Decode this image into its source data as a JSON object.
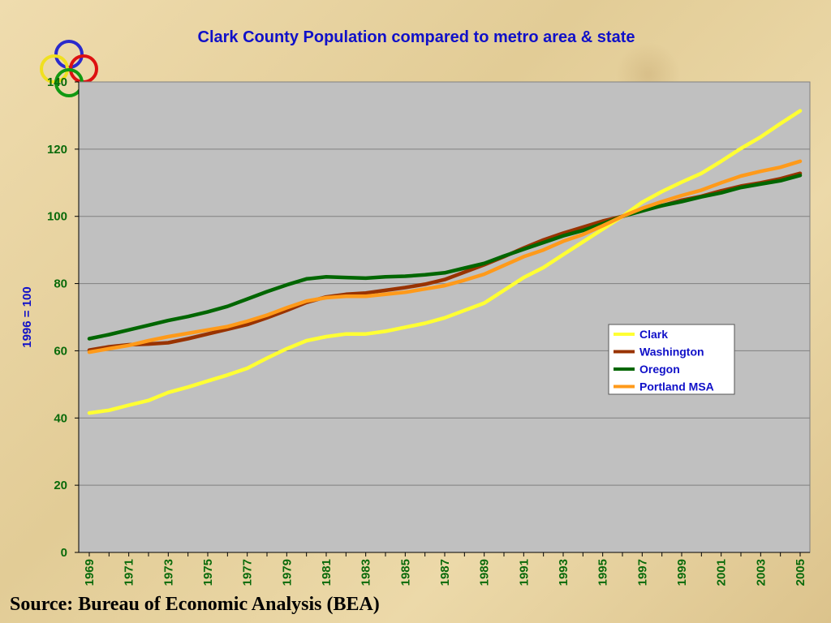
{
  "chart_data": {
    "type": "line",
    "title": "Clark County Population compared to metro area & state",
    "ylabel": "1996 = 100",
    "ylim": [
      0,
      140
    ],
    "yticks": [
      "0",
      "20",
      "40",
      "60",
      "80",
      "100",
      "120",
      "140"
    ],
    "x": [
      1969,
      1970,
      1971,
      1972,
      1973,
      1974,
      1975,
      1976,
      1977,
      1978,
      1979,
      1980,
      1981,
      1982,
      1983,
      1984,
      1985,
      1986,
      1987,
      1988,
      1989,
      1990,
      1991,
      1992,
      1993,
      1994,
      1995,
      1996,
      1997,
      1998,
      1999,
      2000,
      2001,
      2002,
      2003,
      2004,
      2005
    ],
    "xtick_labels": [
      "1969",
      "1971",
      "1973",
      "1975",
      "1977",
      "1979",
      "1981",
      "1983",
      "1985",
      "1987",
      "1989",
      "1991",
      "1993",
      "1995",
      "1997",
      "1999",
      "2001",
      "2003",
      "2005"
    ],
    "grid": true,
    "legend_position": "center-right",
    "plot_background": "#c0c0c0",
    "series": [
      {
        "name": "Clark",
        "color": "#ffff33",
        "values": [
          41.5,
          42.3,
          43.8,
          45.2,
          47.6,
          49.2,
          51.0,
          52.8,
          54.8,
          57.8,
          60.6,
          63.0,
          64.2,
          65.0,
          65.0,
          65.8,
          67.0,
          68.2,
          69.8,
          72.0,
          74.2,
          78.0,
          81.8,
          84.8,
          88.6,
          92.4,
          96.2,
          100,
          104.2,
          107.4,
          110.2,
          112.8,
          116.4,
          120.2,
          123.6,
          127.6,
          131.4
        ]
      },
      {
        "name": "Washington",
        "color": "#993300",
        "values": [
          60.2,
          61.2,
          61.8,
          62.0,
          62.4,
          63.6,
          65.0,
          66.4,
          67.8,
          69.8,
          72.0,
          74.4,
          76.0,
          76.8,
          77.2,
          78.0,
          78.8,
          79.8,
          81.2,
          83.4,
          85.6,
          88.0,
          90.6,
          93.0,
          95.0,
          96.8,
          98.6,
          100,
          101.8,
          103.2,
          104.8,
          106.0,
          107.6,
          109.0,
          110.0,
          111.2,
          112.8
        ]
      },
      {
        "name": "Oregon",
        "color": "#006600",
        "values": [
          63.6,
          64.8,
          66.2,
          67.6,
          69.0,
          70.2,
          71.6,
          73.2,
          75.4,
          77.6,
          79.6,
          81.4,
          82.0,
          81.8,
          81.6,
          82.0,
          82.2,
          82.6,
          83.2,
          84.6,
          86.0,
          88.2,
          90.2,
          92.2,
          94.2,
          95.8,
          97.8,
          100,
          101.6,
          103.2,
          104.4,
          105.8,
          107.0,
          108.6,
          109.6,
          110.6,
          112.2
        ]
      },
      {
        "name": "Portland MSA",
        "color": "#ff9a1a",
        "values": [
          59.6,
          60.6,
          61.6,
          63.0,
          64.2,
          65.2,
          66.2,
          67.2,
          68.8,
          70.6,
          72.8,
          74.8,
          75.8,
          76.2,
          76.2,
          76.8,
          77.4,
          78.4,
          79.4,
          81.0,
          82.8,
          85.4,
          88.0,
          90.0,
          92.6,
          94.6,
          97.2,
          100,
          102.4,
          104.4,
          106.2,
          107.8,
          110.0,
          112.0,
          113.4,
          114.6,
          116.4
        ]
      }
    ]
  },
  "footer": {
    "source": "Source: Bureau of Economic Analysis (BEA)"
  },
  "logo": {
    "ring_colors": [
      "#2a2acc",
      "#f0e020",
      "#dd1111",
      "#119911"
    ]
  }
}
